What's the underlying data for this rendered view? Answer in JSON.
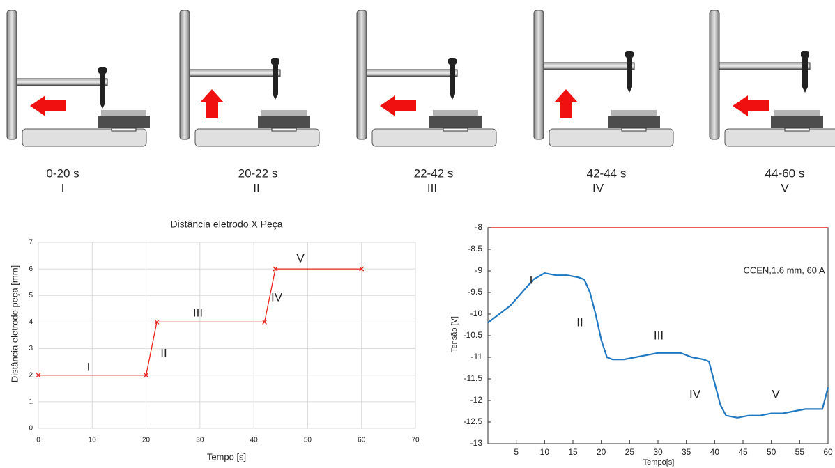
{
  "stages": [
    {
      "time": "0-20 s",
      "label": "I"
    },
    {
      "time": "20-22 s",
      "label": "II"
    },
    {
      "time": "22-42 s",
      "label": "III"
    },
    {
      "time": "42-44 s",
      "label": "IV"
    },
    {
      "time": "44-60 s",
      "label": "V"
    }
  ],
  "chart_data": [
    {
      "type": "line",
      "title": "Distância eletrodo X Peça",
      "x": [
        0,
        20,
        22,
        42,
        44,
        60
      ],
      "values": [
        2,
        2,
        4,
        4,
        6,
        6
      ],
      "color": "#e8231b",
      "marker": "x",
      "xlim": [
        0,
        70
      ],
      "xticks": [
        0,
        10,
        20,
        30,
        40,
        50,
        60,
        70
      ],
      "ylim": [
        0,
        7
      ],
      "yticks": [
        0,
        1,
        2,
        3,
        4,
        5,
        6,
        7
      ],
      "xlabel": "Tempo [s]",
      "ylabel": "Distância eletrodo peça [mm]",
      "grid": true,
      "annotations": [
        "I",
        "II",
        "III",
        "IV",
        "V"
      ]
    },
    {
      "type": "line",
      "x": [
        0,
        2,
        4,
        6,
        8,
        10,
        12,
        14,
        16,
        17,
        18,
        19,
        20,
        21,
        22,
        24,
        26,
        28,
        30,
        32,
        34,
        36,
        38,
        39,
        40,
        41,
        42,
        44,
        46,
        48,
        50,
        52,
        54,
        56,
        58,
        59,
        60
      ],
      "values": [
        -10.2,
        -10.0,
        -9.8,
        -9.5,
        -9.2,
        -9.05,
        -9.1,
        -9.1,
        -9.15,
        -9.2,
        -9.5,
        -10.0,
        -10.6,
        -11.0,
        -11.05,
        -11.05,
        -11.0,
        -10.95,
        -10.9,
        -10.9,
        -10.9,
        -11.0,
        -11.05,
        -11.1,
        -11.6,
        -12.1,
        -12.35,
        -12.4,
        -12.35,
        -12.35,
        -12.3,
        -12.3,
        -12.25,
        -12.2,
        -12.2,
        -12.2,
        -11.7
      ],
      "color": "#1f78c1",
      "xlim": [
        0,
        60
      ],
      "xticks": [
        5,
        10,
        15,
        20,
        25,
        30,
        35,
        40,
        45,
        50,
        55,
        60
      ],
      "ylim": [
        -13,
        -8
      ],
      "yticks": [
        -13,
        -12.5,
        -12,
        -11.5,
        -11,
        -10.5,
        -10,
        -9.5,
        -9,
        -8.5,
        -8
      ],
      "xlabel": "Tempo[s]",
      "ylabel": "Tensão [V]",
      "grid": false,
      "annotations": [
        "CCEN,1.6 mm, 60 A",
        "I",
        "II",
        "III",
        "IV",
        "V"
      ]
    }
  ]
}
